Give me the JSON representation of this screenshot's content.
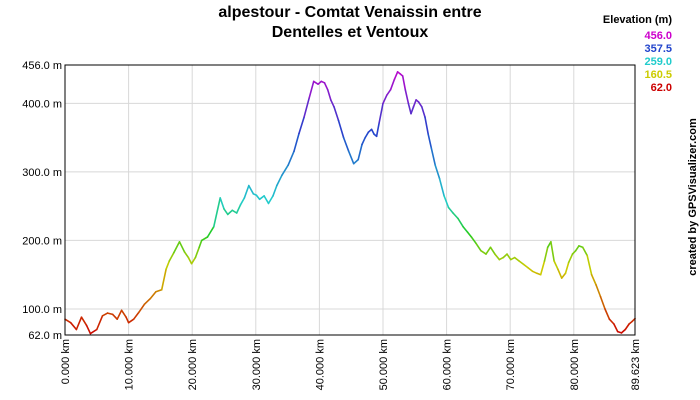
{
  "chart_data": {
    "type": "line",
    "title_lines": [
      "alpestour - Comtat Venaissin entre",
      "Dentelles et Ventoux"
    ],
    "xlabel": "",
    "ylabel": "",
    "x_unit": "km",
    "xlim": [
      0,
      89.623
    ],
    "ylim": [
      62.0,
      456.0
    ],
    "x_ticks": [
      0,
      10,
      20,
      30,
      40,
      50,
      60,
      70,
      80,
      89.623
    ],
    "x_tick_labels": [
      "0.000 km",
      "10.000 km",
      "20.000 km",
      "30.000 km",
      "40.000 km",
      "50.000 km",
      "60.000 km",
      "70.000 km",
      "80.000 km",
      "89.623 km"
    ],
    "y_ticks": [
      62.0,
      100.0,
      200.0,
      300.0,
      400.0,
      456.0
    ],
    "y_tick_labels": [
      "62.0 m",
      "100.0 m",
      "200.0 m",
      "300.0 m",
      "400.0 m",
      "456.0 m"
    ],
    "grid": true,
    "legend": {
      "title": "Elevation (m)",
      "position": "top-right",
      "entries": [
        {
          "label": "456.0",
          "color": "#cc00cc"
        },
        {
          "label": "357.5",
          "color": "#2244cc"
        },
        {
          "label": "259.0",
          "color": "#22cccc"
        },
        {
          "label": "160.5",
          "color": "#cccc00"
        },
        {
          "label": "62.0",
          "color": "#cc0000"
        }
      ]
    },
    "color_scale": [
      {
        "value": 62.0,
        "color": "#cc0000"
      },
      {
        "value": 160.5,
        "color": "#cccc00"
      },
      {
        "value": 210.0,
        "color": "#22cc22"
      },
      {
        "value": 259.0,
        "color": "#22cccc"
      },
      {
        "value": 357.5,
        "color": "#2244cc"
      },
      {
        "value": 456.0,
        "color": "#cc00cc"
      }
    ],
    "series": [
      {
        "x": [
          0,
          0.9,
          1.8,
          2.6,
          3.4,
          4.0,
          5.0,
          5.9,
          6.7,
          7.5,
          8.2,
          8.9,
          9.6,
          10.0,
          10.8,
          11.6,
          12.5,
          13.4,
          14.3,
          15.2,
          15.9,
          16.4,
          17.1,
          18.0,
          18.8,
          19.4,
          19.9,
          20.5,
          21.1,
          21.5,
          22.4,
          23.4,
          24.4,
          25.0,
          25.6,
          26.3,
          27.0,
          27.6,
          28.2,
          28.9,
          29.6,
          30.1,
          30.6,
          31.3,
          32.0,
          32.7,
          33.3,
          34.1,
          35.1,
          36.0,
          36.8,
          37.6,
          38.4,
          39.1,
          39.8,
          40.3,
          40.8,
          41.3,
          41.8,
          42.3,
          43.0,
          43.8,
          44.6,
          45.4,
          46.1,
          46.7,
          47.2,
          47.7,
          48.2,
          48.6,
          49.0,
          49.4,
          50.0,
          50.6,
          51.2,
          51.8,
          52.3,
          52.7,
          53.1,
          53.5,
          54.0,
          54.4,
          54.8,
          55.2,
          55.6,
          56.1,
          56.6,
          57.1,
          57.6,
          58.2,
          58.9,
          59.6,
          60.3,
          61.0,
          61.8,
          62.6,
          63.3,
          63.9,
          64.6,
          65.4,
          66.2,
          66.9,
          67.6,
          68.3,
          68.9,
          69.5,
          70.1,
          70.7,
          71.4,
          72.1,
          72.8,
          73.5,
          74.2,
          74.8,
          75.4,
          75.9,
          76.4,
          76.9,
          77.5,
          78.1,
          78.7,
          79.2,
          79.8,
          80.3,
          80.8,
          81.4,
          82.1,
          82.8,
          83.5,
          84.2,
          84.9,
          85.6,
          86.3,
          86.9,
          87.5,
          88.1,
          88.7,
          89.2,
          89.623
        ],
        "y": [
          85,
          80,
          70,
          88,
          76,
          64,
          70,
          90,
          94,
          92,
          85,
          98,
          88,
          80,
          85,
          95,
          107,
          115,
          125,
          128,
          158,
          170,
          182,
          198,
          183,
          175,
          166,
          175,
          190,
          200,
          205,
          220,
          262,
          246,
          238,
          244,
          240,
          252,
          262,
          280,
          268,
          266,
          260,
          265,
          254,
          265,
          280,
          295,
          310,
          330,
          356,
          380,
          408,
          432,
          428,
          432,
          430,
          420,
          405,
          395,
          375,
          350,
          330,
          312,
          318,
          340,
          350,
          358,
          362,
          355,
          352,
          372,
          400,
          412,
          420,
          435,
          446,
          443,
          440,
          420,
          400,
          385,
          395,
          405,
          402,
          395,
          380,
          355,
          335,
          310,
          290,
          265,
          248,
          240,
          232,
          220,
          212,
          205,
          196,
          185,
          180,
          190,
          180,
          172,
          175,
          180,
          172,
          175,
          170,
          165,
          160,
          155,
          152,
          150,
          170,
          190,
          198,
          170,
          158,
          145,
          152,
          168,
          180,
          185,
          192,
          190,
          178,
          150,
          135,
          118,
          100,
          85,
          78,
          67,
          65,
          70,
          78,
          82,
          86
        ]
      }
    ]
  },
  "credit": "created by GPSVisualizer.com"
}
